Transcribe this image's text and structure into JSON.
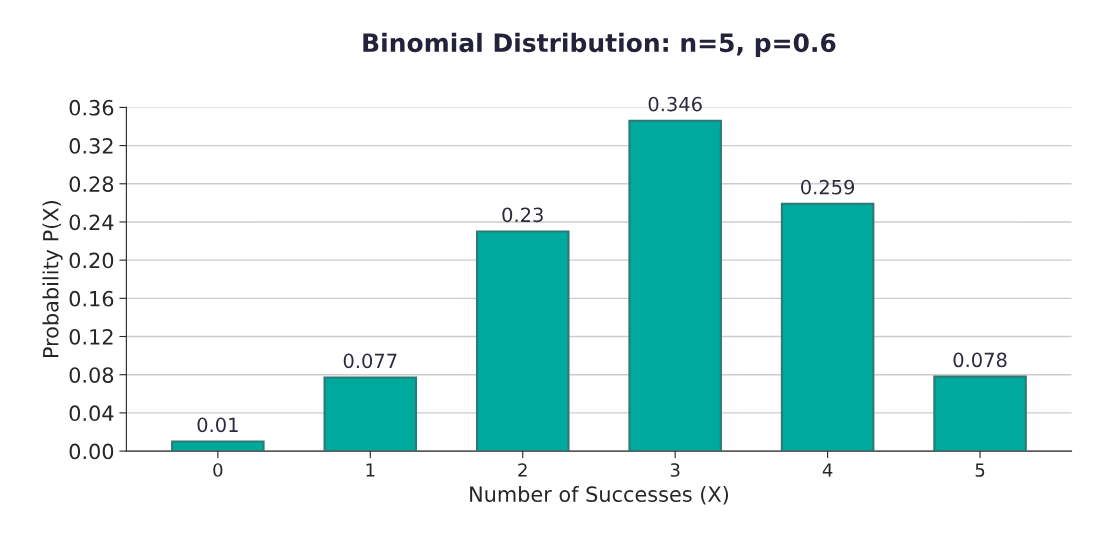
{
  "chart_data": {
    "type": "bar",
    "title": "Binomial Distribution: n=5, p=0.6",
    "xlabel": "Number of Successes (X)",
    "ylabel": "Probability P(X)",
    "categories": [
      "0",
      "1",
      "2",
      "3",
      "4",
      "5"
    ],
    "values": [
      0.01,
      0.077,
      0.23,
      0.346,
      0.259,
      0.078
    ],
    "color": "#00a99d",
    "ylim": [
      0,
      0.36
    ],
    "yticks": [
      {
        "value": 0,
        "label": "0.00"
      },
      0.04,
      0.08,
      0.12,
      0.16,
      {
        "value": 0.2,
        "label": "0.20"
      },
      0.24,
      0.28,
      0.32,
      0.36
    ],
    "grid": "y",
    "data_labels": true
  }
}
